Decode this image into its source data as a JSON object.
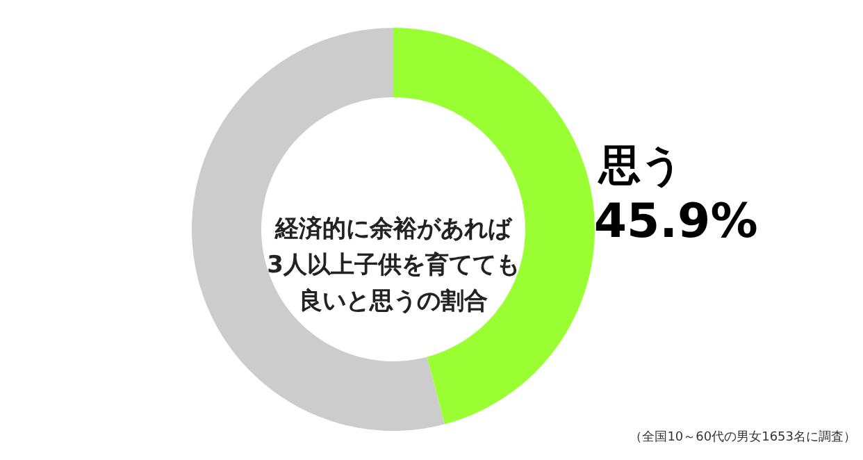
{
  "chart_data": {
    "type": "donut",
    "title": "経済的に余裕があれば3人以上子供を育てても良いと思うの割合",
    "categories": [
      "思う",
      null
    ],
    "values": [
      45.9,
      54.1
    ],
    "colors": [
      "#99ff33",
      "#cccccc"
    ],
    "value_labels": [
      "45.9%",
      null
    ],
    "annotations": [
      "（全国10～60代の男女1653名に調査）"
    ]
  }
}
